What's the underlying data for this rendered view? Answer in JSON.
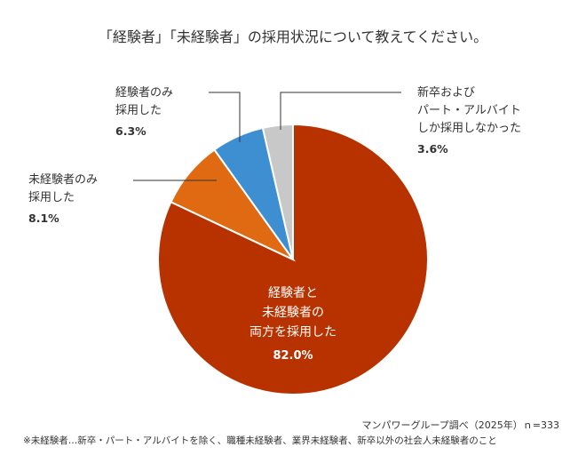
{
  "title": "「経験者」「未経験者」の採用状況について教えてください。",
  "chart_data": {
    "type": "pie",
    "start_angle_deg": 0,
    "direction": "clockwise",
    "slices": [
      {
        "label_lines": [
          "経験者と",
          "未経験者の",
          "両方を採用した"
        ],
        "value": 82.0,
        "value_label": "82.0%",
        "color": "#b83200"
      },
      {
        "label_lines": [
          "未経験者のみ",
          "採用した"
        ],
        "value": 8.1,
        "value_label": "8.1%",
        "color": "#e06a12"
      },
      {
        "label_lines": [
          "経験者のみ",
          "採用した"
        ],
        "value": 6.3,
        "value_label": "6.3%",
        "color": "#3d8fd1"
      },
      {
        "label_lines": [
          "新卒およびび",
          "パート・アルバイト",
          "しか採用しなかった"
        ],
        "value": 3.6,
        "value_label": "3.6%",
        "color": "#c8c8c8"
      }
    ]
  },
  "source": "マンパワーグループ調べ（2025年）ｎ=333",
  "note": "※未経験者…新卒・パート・アルバイトを除く、職種未経験者、業界未経験者、新卒以外の社会人未経験者のこと"
}
